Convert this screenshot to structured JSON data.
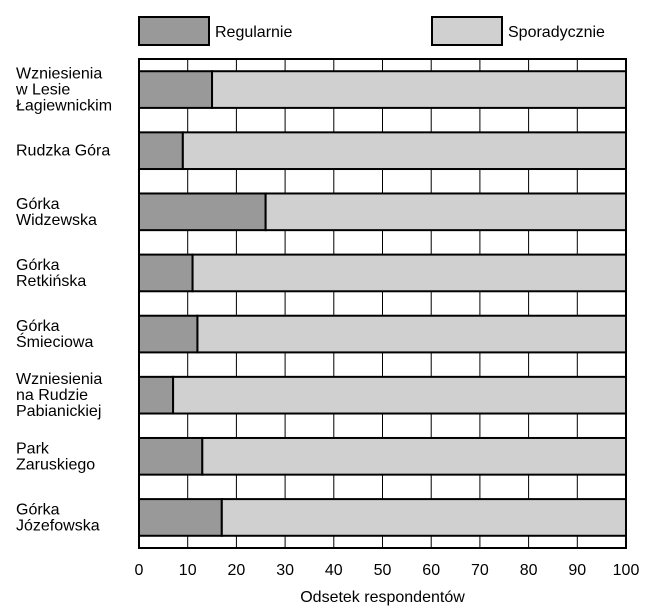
{
  "chart_data": {
    "type": "bar",
    "orientation": "horizontal",
    "stacked": true,
    "categories": [
      [
        "Wzniesienia",
        "w Lesie",
        "Łagiewnickim"
      ],
      [
        "Rudzka Góra"
      ],
      [
        "Górka",
        "Widzewska"
      ],
      [
        "Górka",
        "Retkińska"
      ],
      [
        "Górka",
        "Śmieciowa"
      ],
      [
        "Wzniesienia",
        "na Rudzie",
        "Pabianickiej"
      ],
      [
        "Park",
        "Zaruskiego"
      ],
      [
        "Górka",
        "Józefowska"
      ]
    ],
    "series": [
      {
        "name": "Regularnie",
        "values": [
          15,
          9,
          26,
          11,
          12,
          7,
          13,
          17
        ],
        "color": "#999999"
      },
      {
        "name": "Sporadycznie",
        "values": [
          85,
          91,
          74,
          89,
          88,
          93,
          87,
          83
        ],
        "color": "#d0d0d0"
      }
    ],
    "xlabel": "Odsetek respondentów",
    "xlim": [
      0,
      100
    ],
    "xticks": [
      0,
      10,
      20,
      30,
      40,
      50,
      60,
      70,
      80,
      90,
      100
    ],
    "grid": true,
    "legend": "top"
  }
}
